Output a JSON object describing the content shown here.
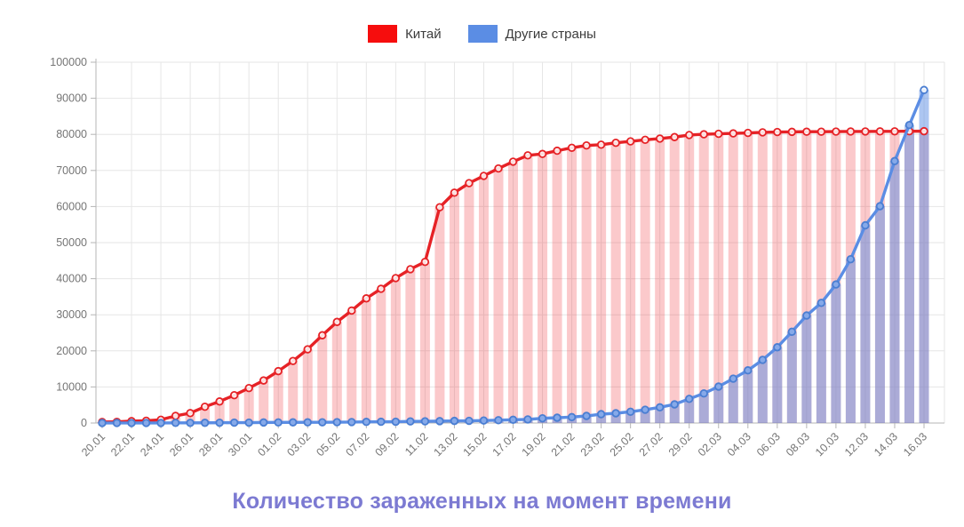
{
  "title": {
    "text": "Количество зараженных на момент времени",
    "color": "#7c7ad2"
  },
  "legend": [
    {
      "label": "Китай",
      "color": "#f60d0d"
    },
    {
      "label": "Другие страны",
      "color": "#5b8de4"
    }
  ],
  "chart_data": {
    "type": "line",
    "subtype": "line-with-bars",
    "title": "Количество зараженных на момент времени",
    "xlabel": "",
    "ylabel": "",
    "ylim": [
      0,
      100000
    ],
    "y_ticks": [
      0,
      10000,
      20000,
      30000,
      40000,
      50000,
      60000,
      70000,
      80000,
      90000,
      100000
    ],
    "grid": true,
    "legend_position": "top",
    "x_tick_step": 2,
    "x": [
      "20.01",
      "21.01",
      "22.01",
      "23.01",
      "24.01",
      "25.01",
      "26.01",
      "27.01",
      "28.01",
      "29.01",
      "30.01",
      "31.01",
      "01.02",
      "02.02",
      "03.02",
      "04.02",
      "05.02",
      "06.02",
      "07.02",
      "08.02",
      "09.02",
      "10.02",
      "11.02",
      "12.02",
      "13.02",
      "14.02",
      "15.02",
      "16.02",
      "17.02",
      "18.02",
      "19.02",
      "20.02",
      "21.02",
      "22.02",
      "23.02",
      "24.02",
      "25.02",
      "26.02",
      "27.02",
      "28.02",
      "29.02",
      "01.03",
      "02.03",
      "03.03",
      "04.03",
      "05.03",
      "06.03",
      "07.03",
      "08.03",
      "09.03",
      "10.03",
      "11.03",
      "12.03",
      "13.03",
      "14.03",
      "15.03",
      "16.03"
    ],
    "x_labels_shown": [
      "20.01",
      "22.01",
      "24.01",
      "26.01",
      "28.01",
      "30.01",
      "01.02",
      "03.02",
      "05.02",
      "07.02",
      "09.02",
      "11.02",
      "13.02",
      "15.02",
      "17.02",
      "19.02",
      "21.02",
      "23.02",
      "25.02",
      "27.02",
      "29.02",
      "02.03",
      "04.03",
      "06.03",
      "08.03",
      "10.03",
      "12.03",
      "14.03",
      "16.03"
    ],
    "series": [
      {
        "name": "Китай",
        "line_color": "#e62226",
        "bar_fill": "rgba(237,28,36,0.24)",
        "point_fill": "#ffffff",
        "point_style": "open-circle",
        "values": [
          278,
          326,
          547,
          639,
          916,
          1979,
          2744,
          4515,
          5974,
          7711,
          9692,
          11791,
          14380,
          17205,
          20438,
          24324,
          28018,
          31161,
          34546,
          37198,
          40171,
          42638,
          44653,
          59804,
          63851,
          66492,
          68500,
          70548,
          72436,
          74185,
          74576,
          75465,
          76288,
          76936,
          77150,
          77658,
          78064,
          78497,
          78824,
          79251,
          79824,
          80026,
          80151,
          80270,
          80409,
          80552,
          80651,
          80695,
          80735,
          80754,
          80778,
          80793,
          80813,
          80824,
          80844,
          80860,
          80881
        ]
      },
      {
        "name": "Другие страны",
        "line_color": "#5b8de4",
        "bar_fill": "rgba(91,141,228,0.5)",
        "point_fill": "#86a9e9",
        "point_stroke": "#4a7ed2",
        "point_style": "filled-circle",
        "values": [
          4,
          6,
          8,
          11,
          25,
          40,
          57,
          64,
          87,
          105,
          118,
          153,
          173,
          183,
          188,
          212,
          227,
          265,
          317,
          343,
          361,
          457,
          476,
          523,
          587,
          608,
          697,
          780,
          896,
          999,
          1310,
          1480,
          1640,
          1970,
          2460,
          2710,
          3120,
          3690,
          4350,
          5170,
          6700,
          8200,
          10100,
          12300,
          14600,
          17500,
          21000,
          25300,
          29800,
          33300,
          38400,
          45400,
          54800,
          60100,
          72600,
          82600,
          92300
        ]
      }
    ]
  }
}
